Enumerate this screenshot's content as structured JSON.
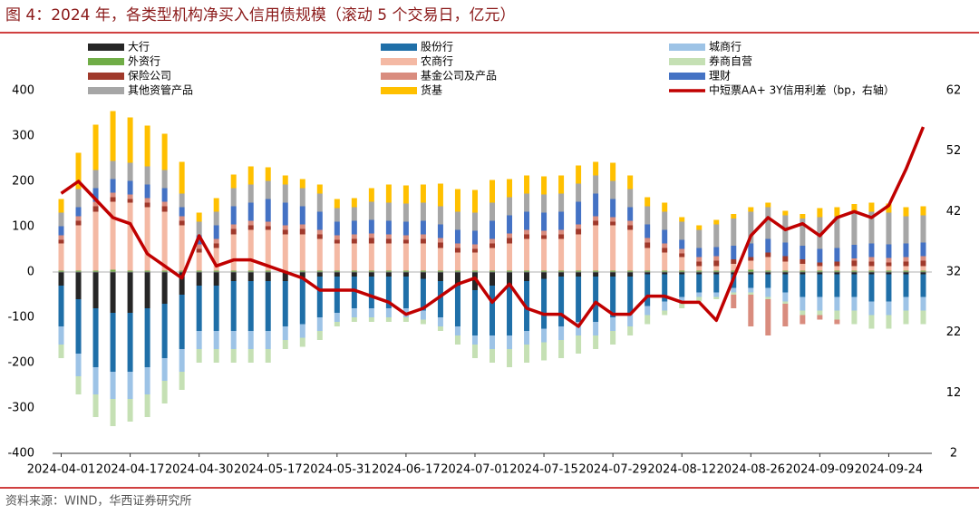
{
  "chart_data": {
    "type": "bar",
    "title": "图 4：2024 年，各类型机构净买入信用债规模（滚动 5 个交易日，亿元）",
    "source": "资料来源：WIND，华西证券研究所",
    "categories": [
      "2024-04-01",
      null,
      null,
      null,
      "2024-04-17",
      null,
      null,
      null,
      "2024-04-30",
      null,
      null,
      null,
      "2024-05-17",
      null,
      null,
      null,
      "2024-05-31",
      null,
      null,
      null,
      "2024-06-17",
      null,
      null,
      null,
      "2024-07-01",
      null,
      null,
      null,
      "2024-07-15",
      null,
      null,
      null,
      "2024-07-29",
      null,
      null,
      null,
      "2024-08-12",
      null,
      null,
      null,
      "2024-08-26",
      null,
      null,
      null,
      "2024-09-09",
      null,
      null,
      null,
      "2024-09-24",
      null,
      null
    ],
    "ylim": [
      -400,
      400
    ],
    "yticks": [
      -400,
      -300,
      -200,
      -100,
      0,
      100,
      200,
      300,
      400
    ],
    "y2lim": [
      2,
      62
    ],
    "y2ticks": [
      2,
      12,
      22,
      32,
      42,
      52,
      62
    ],
    "series": [
      {
        "name": "大行",
        "color": "#262626",
        "values": [
          -30,
          -60,
          -80,
          -90,
          -90,
          -80,
          -70,
          -50,
          -30,
          -30,
          -20,
          -20,
          -20,
          -20,
          -15,
          -10,
          -10,
          -10,
          -10,
          -10,
          -10,
          -15,
          -20,
          -30,
          -40,
          -30,
          -30,
          -20,
          -15,
          -10,
          -10,
          -10,
          -10,
          -10,
          -5,
          -5,
          -5,
          -5,
          -5,
          -5,
          -5,
          -5,
          -5,
          -5,
          -5,
          -5,
          -5,
          -5,
          -5,
          -5,
          -5
        ]
      },
      {
        "name": "股份行",
        "color": "#1f6fa8",
        "values": [
          -90,
          -120,
          -130,
          -130,
          -130,
          -130,
          -120,
          -120,
          -100,
          -100,
          -110,
          -110,
          -110,
          -100,
          -100,
          -90,
          -80,
          -70,
          -70,
          -70,
          -70,
          -70,
          -80,
          -90,
          -100,
          -110,
          -110,
          -110,
          -110,
          -110,
          -100,
          -100,
          -90,
          -80,
          -70,
          -60,
          -50,
          -40,
          -40,
          -30,
          -30,
          -30,
          -40,
          -50,
          -50,
          -50,
          -50,
          -60,
          -60,
          -50,
          -50
        ]
      },
      {
        "name": "城商行",
        "color": "#9dc3e6",
        "values": [
          -40,
          -50,
          -60,
          -60,
          -60,
          -60,
          -50,
          -50,
          -40,
          -40,
          -40,
          -40,
          -40,
          -30,
          -30,
          -30,
          -20,
          -20,
          -20,
          -20,
          -20,
          -20,
          -20,
          -20,
          -20,
          -30,
          -30,
          -30,
          -30,
          -30,
          -30,
          -30,
          -30,
          -30,
          -20,
          -20,
          -15,
          -10,
          -10,
          -10,
          -10,
          -20,
          -20,
          -30,
          -30,
          -30,
          -30,
          -30,
          -30,
          -30,
          -30
        ]
      },
      {
        "name": "外资行",
        "color": "#70ad47",
        "values": [
          3,
          3,
          3,
          5,
          3,
          3,
          3,
          3,
          3,
          3,
          3,
          3,
          3,
          3,
          3,
          3,
          3,
          3,
          3,
          3,
          3,
          3,
          3,
          3,
          3,
          3,
          3,
          3,
          3,
          3,
          3,
          3,
          3,
          3,
          3,
          3,
          3,
          3,
          3,
          3,
          5,
          3,
          3,
          3,
          3,
          3,
          3,
          3,
          3,
          3,
          3
        ]
      },
      {
        "name": "农商行",
        "color": "#f4b9a4",
        "values": [
          60,
          100,
          130,
          150,
          150,
          140,
          130,
          100,
          40,
          50,
          80,
          90,
          90,
          80,
          80,
          70,
          60,
          60,
          60,
          60,
          60,
          60,
          50,
          40,
          40,
          50,
          60,
          70,
          70,
          70,
          80,
          100,
          100,
          90,
          50,
          40,
          30,
          10,
          10,
          15,
          20,
          30,
          20,
          15,
          10,
          10,
          10,
          10,
          10,
          10,
          10
        ]
      },
      {
        "name": "券商自营",
        "color": "#c5e0b4",
        "values": [
          -30,
          -40,
          -50,
          -60,
          -50,
          -50,
          -50,
          -40,
          -30,
          -30,
          -30,
          -30,
          -30,
          -20,
          -20,
          -20,
          -10,
          -10,
          -10,
          -10,
          -10,
          -10,
          -10,
          -20,
          -30,
          -30,
          -40,
          -40,
          -40,
          -40,
          -40,
          -30,
          -30,
          -20,
          -20,
          -10,
          -10,
          -10,
          -5,
          -5,
          -5,
          -5,
          -5,
          -10,
          -10,
          -20,
          -30,
          -30,
          -30,
          -30,
          -30
        ]
      },
      {
        "name": "保险公司",
        "color": "#a0392b",
        "values": [
          8,
          10,
          12,
          10,
          8,
          10,
          12,
          10,
          8,
          10,
          12,
          10,
          8,
          10,
          12,
          10,
          8,
          10,
          12,
          10,
          8,
          10,
          12,
          10,
          8,
          10,
          12,
          10,
          8,
          10,
          12,
          10,
          8,
          10,
          12,
          10,
          8,
          10,
          12,
          10,
          8,
          10,
          12,
          10,
          8,
          10,
          12,
          10,
          8,
          10,
          12
        ]
      },
      {
        "name": "基金公司及产品",
        "color": "#d98c7e",
        "values": [
          10,
          10,
          10,
          10,
          10,
          10,
          10,
          10,
          10,
          10,
          10,
          10,
          10,
          10,
          10,
          10,
          10,
          10,
          10,
          10,
          10,
          10,
          10,
          10,
          10,
          10,
          10,
          10,
          10,
          10,
          10,
          10,
          10,
          10,
          10,
          10,
          10,
          10,
          10,
          -30,
          -70,
          -80,
          -50,
          -20,
          -10,
          -10,
          5,
          10,
          10,
          10,
          10
        ]
      },
      {
        "name": "理财",
        "color": "#4472c4",
        "values": [
          20,
          20,
          30,
          30,
          30,
          30,
          30,
          20,
          20,
          30,
          40,
          40,
          50,
          50,
          40,
          40,
          30,
          30,
          30,
          30,
          30,
          30,
          30,
          30,
          30,
          40,
          40,
          40,
          40,
          40,
          50,
          50,
          40,
          30,
          30,
          30,
          20,
          20,
          20,
          30,
          30,
          30,
          30,
          30,
          30,
          30,
          30,
          30,
          30,
          30,
          30
        ]
      },
      {
        "name": "其他资管产品",
        "color": "#a6a6a6",
        "values": [
          30,
          40,
          40,
          40,
          40,
          40,
          40,
          30,
          30,
          30,
          40,
          40,
          40,
          40,
          40,
          40,
          30,
          30,
          40,
          40,
          40,
          40,
          40,
          40,
          40,
          40,
          40,
          40,
          40,
          40,
          40,
          40,
          40,
          40,
          40,
          40,
          40,
          40,
          50,
          60,
          70,
          70,
          60,
          60,
          70,
          70,
          70,
          70,
          70,
          60,
          60
        ]
      },
      {
        "name": "货基",
        "color": "#ffc000",
        "values": [
          30,
          80,
          100,
          110,
          100,
          90,
          80,
          70,
          20,
          30,
          30,
          40,
          30,
          20,
          20,
          20,
          20,
          20,
          30,
          40,
          40,
          40,
          50,
          50,
          50,
          50,
          40,
          40,
          40,
          40,
          40,
          30,
          40,
          30,
          20,
          20,
          10,
          10,
          10,
          10,
          10,
          10,
          10,
          10,
          20,
          20,
          20,
          20,
          20,
          20,
          20
        ]
      },
      {
        "name": "中短票AA+ 3Y信用利差（bp，右轴）",
        "color": "#c00000",
        "axis": "y2",
        "type": "line",
        "values": [
          45,
          47,
          44,
          41,
          40,
          35,
          33,
          31,
          38,
          33,
          34,
          34,
          33,
          32,
          31,
          29,
          29,
          29,
          28,
          27,
          25,
          26,
          28,
          30,
          31,
          27,
          30,
          26,
          25,
          25,
          23,
          27,
          25,
          25,
          28,
          28,
          27,
          27,
          24,
          31,
          38,
          41,
          39,
          40,
          38,
          41,
          42,
          41,
          43,
          49,
          56
        ]
      }
    ]
  }
}
